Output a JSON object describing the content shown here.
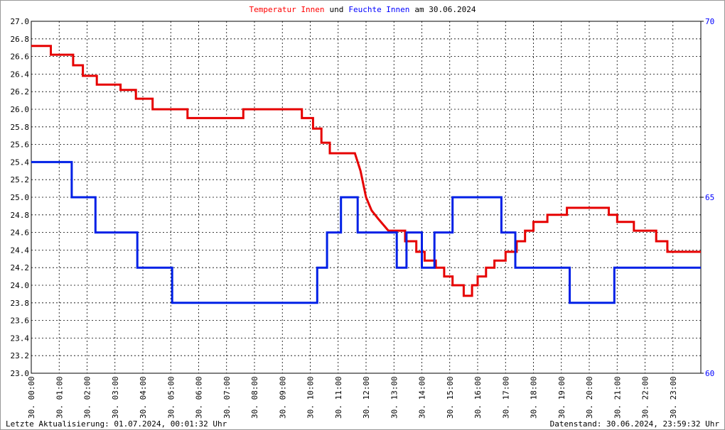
{
  "chart_data": {
    "type": "line",
    "title_parts": [
      {
        "text": "Temperatur Innen",
        "color": "#ff0000"
      },
      {
        "text": "und",
        "color": "#000000"
      },
      {
        "text": "Feuchte Innen",
        "color": "#0000ff"
      },
      {
        "text": "am 30.06.2024",
        "color": "#000000"
      }
    ],
    "footer_left": "Letzte Aktualisierung: 01.07.2024, 00:01:32 Uhr",
    "footer_right": "Datenstand: 30.06.2024, 23:59:32 Uhr",
    "xlim": [
      0,
      24
    ],
    "xticks": [
      {
        "value": 0,
        "label": "30. 00:00"
      },
      {
        "value": 1,
        "label": "30. 01:00"
      },
      {
        "value": 2,
        "label": "30. 02:00"
      },
      {
        "value": 3,
        "label": "30. 03:00"
      },
      {
        "value": 4,
        "label": "30. 04:00"
      },
      {
        "value": 5,
        "label": "30. 05:00"
      },
      {
        "value": 6,
        "label": "30. 06:00"
      },
      {
        "value": 7,
        "label": "30. 07:00"
      },
      {
        "value": 8,
        "label": "30. 08:00"
      },
      {
        "value": 9,
        "label": "30. 09:00"
      },
      {
        "value": 10,
        "label": "30. 10:00"
      },
      {
        "value": 11,
        "label": "30. 11:00"
      },
      {
        "value": 12,
        "label": "30. 12:00"
      },
      {
        "value": 13,
        "label": "30. 13:00"
      },
      {
        "value": 14,
        "label": "30. 14:00"
      },
      {
        "value": 15,
        "label": "30. 15:00"
      },
      {
        "value": 16,
        "label": "30. 16:00"
      },
      {
        "value": 17,
        "label": "30. 17:00"
      },
      {
        "value": 18,
        "label": "30. 18:00"
      },
      {
        "value": 19,
        "label": "30. 19:00"
      },
      {
        "value": 20,
        "label": "30. 20:00"
      },
      {
        "value": 21,
        "label": "30. 21:00"
      },
      {
        "value": 22,
        "label": "30. 22:00"
      },
      {
        "value": 23,
        "label": "30. 23:00"
      }
    ],
    "ylim": [
      23,
      27
    ],
    "yticks": [
      {
        "value": 23,
        "label": "23.0"
      },
      {
        "value": 23.2,
        "label": "23.2"
      },
      {
        "value": 23.4,
        "label": "23.4"
      },
      {
        "value": 23.6,
        "label": "23.6"
      },
      {
        "value": 23.8,
        "label": "23.8"
      },
      {
        "value": 24,
        "label": "24.0"
      },
      {
        "value": 24.2,
        "label": "24.2"
      },
      {
        "value": 24.4,
        "label": "24.4"
      },
      {
        "value": 24.6,
        "label": "24.6"
      },
      {
        "value": 24.8,
        "label": "24.8"
      },
      {
        "value": 25,
        "label": "25.0"
      },
      {
        "value": 25.2,
        "label": "25.2"
      },
      {
        "value": 25.4,
        "label": "25.4"
      },
      {
        "value": 25.6,
        "label": "25.6"
      },
      {
        "value": 25.8,
        "label": "25.8"
      },
      {
        "value": 26,
        "label": "26.0"
      },
      {
        "value": 26.2,
        "label": "26.2"
      },
      {
        "value": 26.4,
        "label": "26.4"
      },
      {
        "value": 26.6,
        "label": "26.6"
      },
      {
        "value": 26.8,
        "label": "26.8"
      },
      {
        "value": 27,
        "label": "27.0"
      }
    ],
    "y2lim": [
      60,
      70
    ],
    "y2ticks": [
      60,
      65,
      70
    ],
    "grid": true,
    "series": [
      {
        "name": "Temperatur Innen",
        "color": "#e60000",
        "axis": "y",
        "x": [
          0,
          0.7,
          0.7,
          1.5,
          1.5,
          1.85,
          1.85,
          2.35,
          2.35,
          3.2,
          3.2,
          3.75,
          3.75,
          4.35,
          4.35,
          5.6,
          5.6,
          7.6,
          7.6,
          9.7,
          9.7,
          10.1,
          10.1,
          10.4,
          10.4,
          10.7,
          10.7,
          11.6,
          11.8,
          12.0,
          12.2,
          12.45,
          12.8,
          13.4,
          13.4,
          13.8,
          13.8,
          14.1,
          14.1,
          14.5,
          14.5,
          14.8,
          14.8,
          15.1,
          15.1,
          15.5,
          15.5,
          15.8,
          15.8,
          16.0,
          16.0,
          16.3,
          16.3,
          16.6,
          16.6,
          17.0,
          17.0,
          17.4,
          17.4,
          17.7,
          17.7,
          18.0,
          18.0,
          18.5,
          18.5,
          19.2,
          19.2,
          20.7,
          20.7,
          21.0,
          21.0,
          21.6,
          21.6,
          22.4,
          22.4,
          22.8,
          22.8,
          24
        ],
        "values": [
          26.72,
          26.72,
          26.62,
          26.62,
          26.5,
          26.5,
          26.38,
          26.38,
          26.28,
          26.28,
          26.22,
          26.22,
          26.12,
          26.12,
          26.0,
          26.0,
          25.9,
          25.9,
          26.0,
          26.0,
          25.9,
          25.9,
          25.78,
          25.78,
          25.62,
          25.62,
          25.5,
          25.5,
          25.3,
          25.0,
          24.85,
          24.75,
          24.62,
          24.62,
          24.5,
          24.5,
          24.38,
          24.38,
          24.28,
          24.28,
          24.2,
          24.2,
          24.1,
          24.1,
          24.0,
          24.0,
          23.88,
          23.88,
          24.0,
          24.0,
          24.1,
          24.1,
          24.2,
          24.2,
          24.28,
          24.28,
          24.38,
          24.38,
          24.5,
          24.5,
          24.62,
          24.62,
          24.72,
          24.72,
          24.8,
          24.8,
          24.88,
          24.88,
          24.8,
          24.8,
          24.72,
          24.72,
          24.62,
          24.62,
          24.5,
          24.5,
          24.38,
          24.38
        ]
      },
      {
        "name": "Feuchte Innen",
        "color": "#0020e6",
        "axis": "y2",
        "x": [
          0,
          1.45,
          1.45,
          2.3,
          2.3,
          3.8,
          3.8,
          5.05,
          5.05,
          10.25,
          10.25,
          10.6,
          10.6,
          11.1,
          11.1,
          11.7,
          11.7,
          13.1,
          13.1,
          13.45,
          13.45,
          14.0,
          14.0,
          14.45,
          14.45,
          15.1,
          15.1,
          16.85,
          16.85,
          17.35,
          17.35,
          19.3,
          19.3,
          20.9,
          20.9,
          24
        ],
        "values": [
          66,
          66,
          65,
          65,
          64,
          64,
          63,
          63,
          62,
          62,
          63,
          63,
          64,
          64,
          65,
          65,
          64,
          64,
          63,
          63,
          64,
          64,
          63,
          63,
          64,
          64,
          65,
          65,
          64,
          64,
          63,
          63,
          62,
          62,
          63,
          63
        ]
      }
    ]
  }
}
